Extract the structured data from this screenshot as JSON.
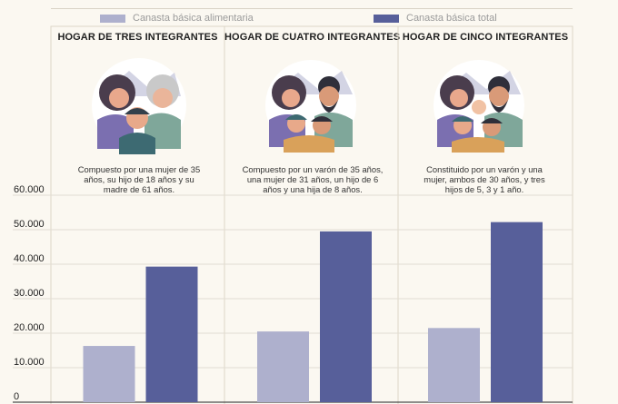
{
  "legend": {
    "items": [
      {
        "label": "Canasta básica alimentaria",
        "color": "#aeb0cd"
      },
      {
        "label": "Canasta básica total",
        "color": "#575f9a"
      }
    ]
  },
  "panels": [
    {
      "title": "HOGAR DE TRES INTEGRANTES",
      "description": "Compuesto por una mujer de 35 años, su hijo de 18 años y su madre de 61 años."
    },
    {
      "title": "HOGAR DE CUATRO INTEGRANTES",
      "description": "Compuesto por un varón de 35 años, una mujer de 31 años, un hijo de 6 años y una hija de 8 años."
    },
    {
      "title": "HOGAR DE CINCO INTEGRANTES",
      "description": "Constituido por un varón y una mujer, ambos de 30 años, y tres hijos de 5, 3 y 1 año."
    }
  ],
  "chart_data": {
    "type": "bar",
    "categories": [
      "HOGAR DE TRES INTEGRANTES",
      "HOGAR DE CUATRO INTEGRANTES",
      "HOGAR DE CINCO INTEGRANTES"
    ],
    "series": [
      {
        "name": "Canasta básica alimentaria",
        "values": [
          16300,
          20500,
          21500
        ],
        "color": "#aeb0cd"
      },
      {
        "name": "Canasta básica total",
        "values": [
          39300,
          49500,
          52200
        ],
        "color": "#575f9a"
      }
    ],
    "yticks": [
      "60.000",
      "50.000",
      "40.000",
      "30.000",
      "20.000",
      "10.000",
      "0"
    ],
    "ytick_values": [
      60000,
      50000,
      40000,
      30000,
      20000,
      10000,
      0
    ],
    "ylim": [
      0,
      60000
    ],
    "grid": true,
    "legend_position": "top"
  }
}
